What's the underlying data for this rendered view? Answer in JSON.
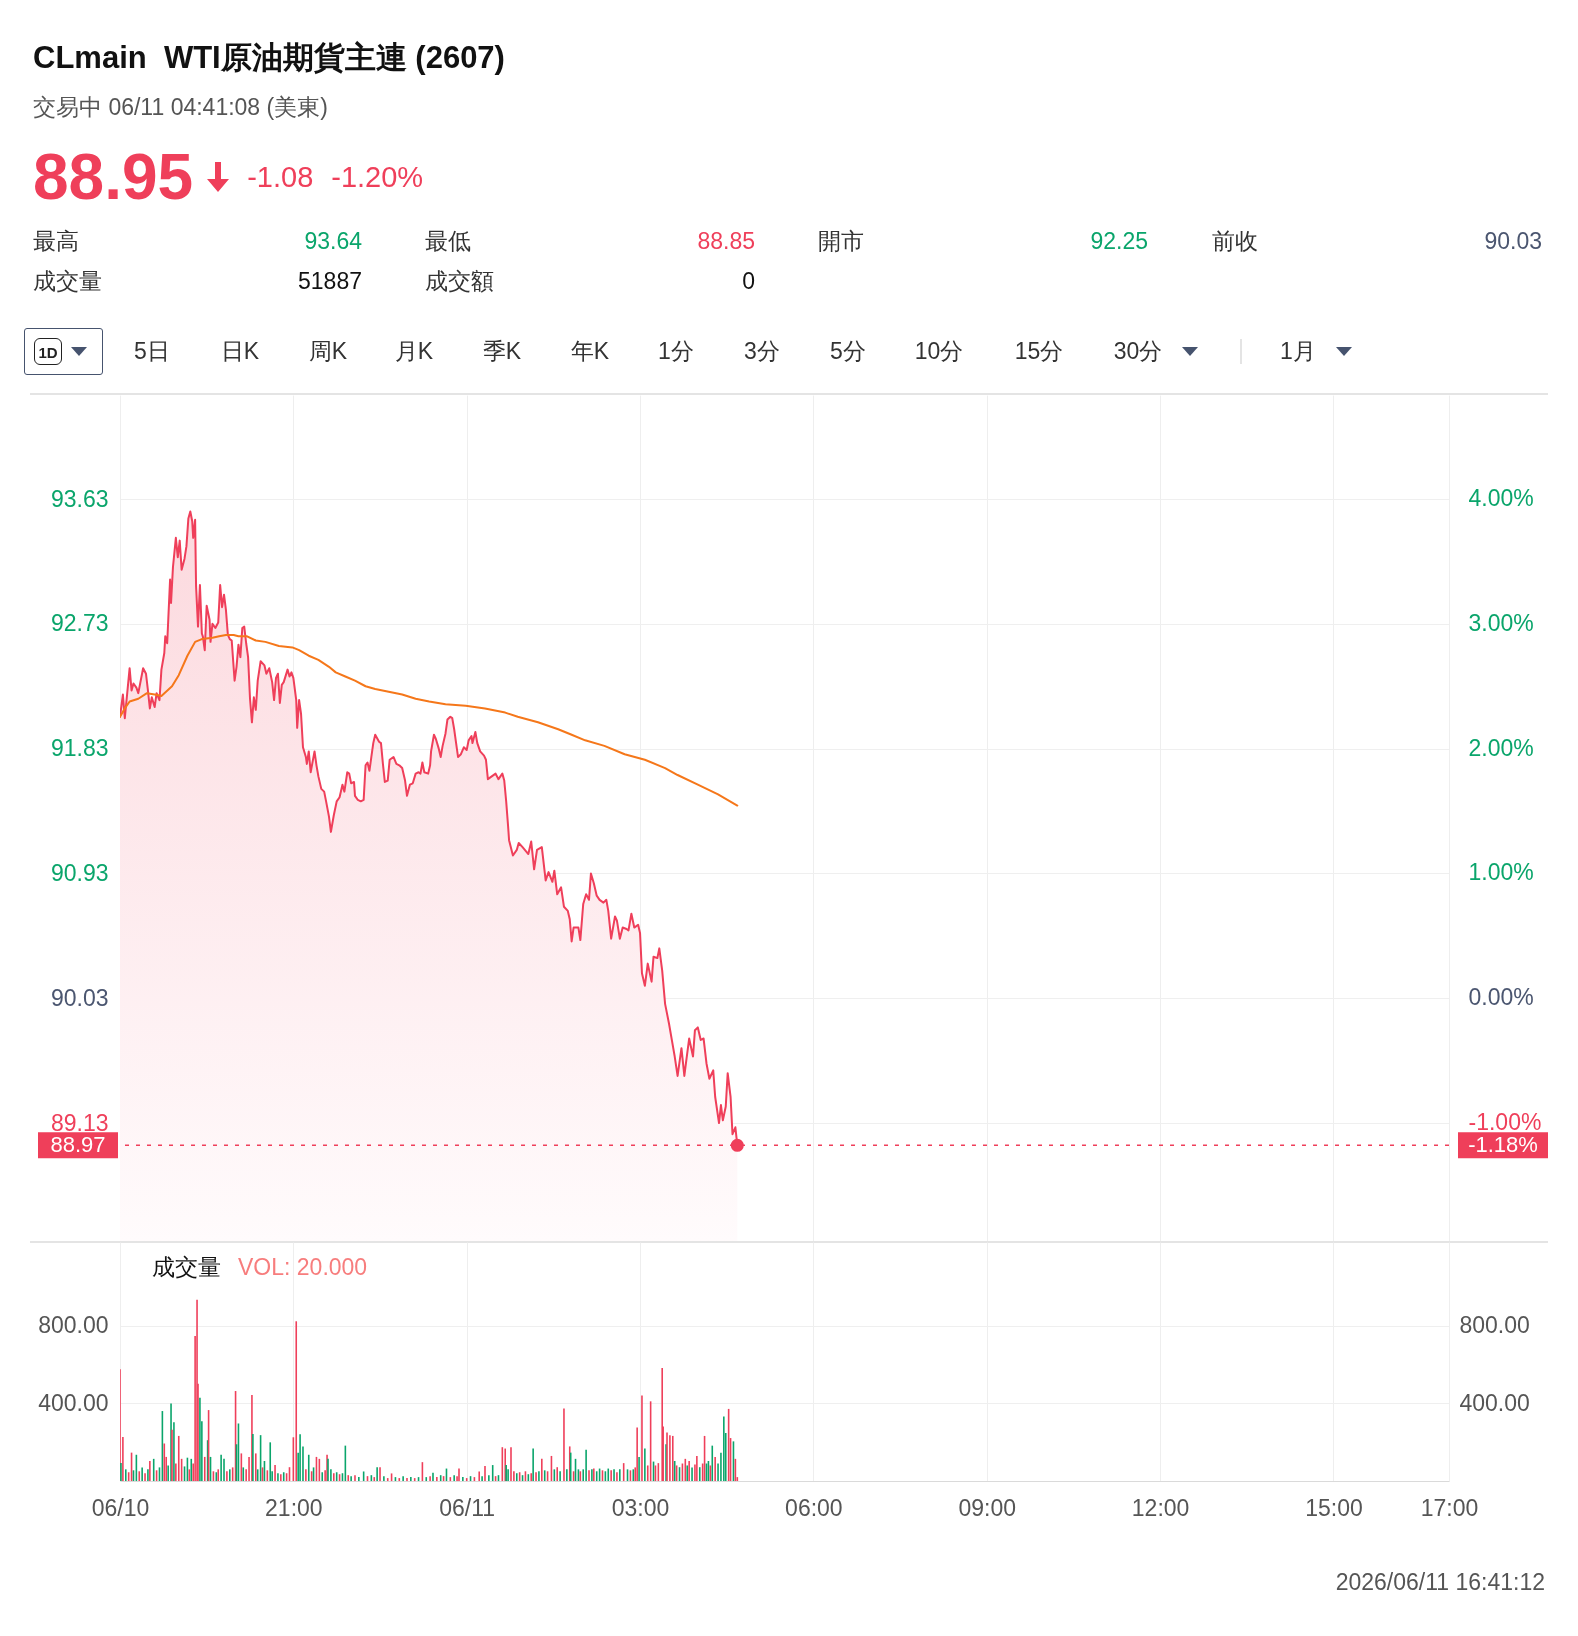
{
  "chart_data": [
    {
      "type": "other",
      "title": "CLmain  WTI原油期貨主連 (2607)",
      "subtitle": "交易中 06/11 04:41:08 (美東)",
      "annotations": [
        "88.95",
        "-1.08",
        "-1.20%",
        "最高",
        "93.64",
        "最低",
        "88.85",
        "開市",
        "92.25",
        "前收",
        "90.03",
        "成交量",
        "51887",
        "成交額",
        "0",
        "1D",
        "5日",
        "日K",
        "周K",
        "月K",
        "季K",
        "年K",
        "1分",
        "3分",
        "5分",
        "10分",
        "15分",
        "30分",
        "1月"
      ]
    },
    {
      "type": "area",
      "series": [
        {
          "type": "area",
          "color": "#ef3f5a",
          "x": [
            "2026-06-10T18:00",
            "2026-06-10T18:03",
            "2026-06-10T18:05",
            "2026-06-10T18:10",
            "2026-06-10T18:12",
            "2026-06-10T18:14",
            "2026-06-10T18:17",
            "2026-06-10T18:19",
            "2026-06-10T18:24",
            "2026-06-10T18:27",
            "2026-06-10T18:29",
            "2026-06-10T18:31",
            "2026-06-10T18:33",
            "2026-06-10T18:36",
            "2026-06-10T18:38",
            "2026-06-10T18:41",
            "2026-06-10T18:43",
            "2026-06-10T18:46",
            "2026-06-10T18:47",
            "2026-06-10T18:49",
            "2026-06-10T18:52",
            "2026-06-10T18:53",
            "2026-06-10T18:55",
            "2026-06-10T18:58",
            "2026-06-10T19:00",
            "2026-06-10T19:02",
            "2026-06-10T19:04",
            "2026-06-10T19:07",
            "2026-06-10T19:09",
            "2026-06-10T19:11",
            "2026-06-10T19:13",
            "2026-06-10T19:15",
            "2026-06-10T19:16",
            "2026-06-10T19:18",
            "2026-06-10T19:19",
            "2026-06-10T19:21",
            "2026-06-10T19:23",
            "2026-06-10T19:25",
            "2026-06-10T19:26",
            "2026-06-10T19:28",
            "2026-06-10T19:30",
            "2026-06-10T19:33",
            "2026-06-10T19:34",
            "2026-06-10T19:36",
            "2026-06-10T19:39",
            "2026-06-10T19:42",
            "2026-06-10T19:44",
            "2026-06-10T19:46",
            "2026-06-10T19:48",
            "2026-06-10T19:50",
            "2026-06-10T19:52",
            "2026-06-10T19:54",
            "2026-06-10T19:56",
            "2026-06-10T19:59",
            "2026-06-10T20:01",
            "2026-06-10T20:03",
            "2026-06-10T20:05",
            "2026-06-10T20:07",
            "2026-06-10T20:09",
            "2026-06-10T20:11",
            "2026-06-10T20:13",
            "2026-06-10T20:15",
            "2026-06-10T20:17",
            "2026-06-10T20:19",
            "2026-06-10T20:21",
            "2026-06-10T20:23",
            "2026-06-10T20:26",
            "2026-06-10T20:30",
            "2026-06-10T20:32",
            "2026-06-10T20:35",
            "2026-06-10T20:38",
            "2026-06-10T20:40",
            "2026-06-10T20:42",
            "2026-06-10T20:44",
            "2026-06-10T20:46",
            "2026-06-10T20:48",
            "2026-06-10T20:50",
            "2026-06-10T20:54",
            "2026-06-10T20:56",
            "2026-06-10T20:58",
            "2026-06-10T21:00",
            "2026-06-10T21:03",
            "2026-06-10T21:04",
            "2026-06-10T21:06",
            "2026-06-10T21:08",
            "2026-06-10T21:10",
            "2026-06-10T21:13",
            "2026-06-10T21:14",
            "2026-06-10T21:16",
            "2026-06-10T21:18",
            "2026-06-10T21:22",
            "2026-06-10T21:24",
            "2026-06-10T21:26",
            "2026-06-10T21:29",
            "2026-06-10T21:32",
            "2026-06-10T21:34",
            "2026-06-10T21:37",
            "2026-06-10T21:39",
            "2026-06-10T21:42",
            "2026-06-10T21:45",
            "2026-06-10T21:48",
            "2026-06-10T21:51",
            "2026-06-10T21:53",
            "2026-06-10T21:56",
            "2026-06-10T21:58",
            "2026-06-10T22:00",
            "2026-06-10T22:03",
            "2026-06-10T22:04",
            "2026-06-10T22:07",
            "2026-06-10T22:10",
            "2026-06-10T22:13",
            "2026-06-10T22:15",
            "2026-06-10T22:17",
            "2026-06-10T22:19",
            "2026-06-10T22:21",
            "2026-06-10T22:23",
            "2026-06-10T22:25",
            "2026-06-10T22:29",
            "2026-06-10T22:31",
            "2026-06-10T22:33",
            "2026-06-10T22:35",
            "2026-06-10T22:38",
            "2026-06-10T22:40",
            "2026-06-10T22:44",
            "2026-06-10T22:47",
            "2026-06-10T22:50",
            "2026-06-10T22:53",
            "2026-06-10T22:56",
            "2026-06-10T22:58",
            "2026-06-10T23:01",
            "2026-06-10T23:04",
            "2026-06-10T23:07",
            "2026-06-10T23:10",
            "2026-06-10T23:12",
            "2026-06-10T23:14",
            "2026-06-10T23:16",
            "2026-06-10T23:20",
            "2026-06-10T23:22",
            "2026-06-10T23:23",
            "2026-06-10T23:26",
            "2026-06-10T23:28",
            "2026-06-10T23:31",
            "2026-06-10T23:33",
            "2026-06-10T23:35",
            "2026-06-10T23:38",
            "2026-06-10T23:40",
            "2026-06-10T23:43",
            "2026-06-10T23:45",
            "2026-06-10T23:47",
            "2026-06-10T23:49",
            "2026-06-10T23:51",
            "2026-06-10T23:54",
            "2026-06-10T23:57",
            "2026-06-11T00:00",
            "2026-06-11T00:02",
            "2026-06-11T00:05",
            "2026-06-11T00:06",
            "2026-06-11T00:09",
            "2026-06-11T00:11",
            "2026-06-11T00:14",
            "2026-06-11T00:18",
            "2026-06-11T00:20",
            "2026-06-11T00:22",
            "2026-06-11T00:26",
            "2026-06-11T00:30",
            "2026-06-11T00:33",
            "2026-06-11T00:37",
            "2026-06-11T00:39",
            "2026-06-11T00:41",
            "2026-06-11T00:43",
            "2026-06-11T00:44",
            "2026-06-11T00:48",
            "2026-06-11T00:52",
            "2026-06-11T00:54",
            "2026-06-11T00:58",
            "2026-06-11T01:04",
            "2026-06-11T01:07",
            "2026-06-11T01:10",
            "2026-06-11T01:13",
            "2026-06-11T01:18",
            "2026-06-11T01:22",
            "2026-06-11T01:25",
            "2026-06-11T01:29",
            "2026-06-11T01:31",
            "2026-06-11T01:34",
            "2026-06-11T01:38",
            "2026-06-11T01:41",
            "2026-06-11T01:45",
            "2026-06-11T01:47",
            "2026-06-11T01:49",
            "2026-06-11T01:51",
            "2026-06-11T01:56",
            "2026-06-11T01:58",
            "2026-06-11T02:01",
            "2026-06-11T02:04",
            "2026-06-11T02:07",
            "2026-06-11T02:09",
            "2026-06-11T02:12",
            "2026-06-11T02:15",
            "2026-06-11T02:18",
            "2026-06-11T02:22",
            "2026-06-11T02:25",
            "2026-06-11T02:27",
            "2026-06-11T02:30",
            "2026-06-11T02:34",
            "2026-06-11T02:36",
            "2026-06-11T02:39",
            "2026-06-11T02:42",
            "2026-06-11T02:46",
            "2026-06-11T02:48",
            "2026-06-11T02:51",
            "2026-06-11T02:54",
            "2026-06-11T02:58",
            "2026-06-11T03:00",
            "2026-06-11T03:02",
            "2026-06-11T03:05",
            "2026-06-11T03:08",
            "2026-06-11T03:12",
            "2026-06-11T03:14",
            "2026-06-11T03:18",
            "2026-06-11T03:20",
            "2026-06-11T03:23",
            "2026-06-11T03:26",
            "2026-06-11T03:30",
            "2026-06-11T03:33",
            "2026-06-11T03:36",
            "2026-06-11T03:39",
            "2026-06-11T03:43",
            "2026-06-11T03:46",
            "2026-06-11T03:48",
            "2026-06-11T03:51",
            "2026-06-11T03:55",
            "2026-06-11T03:57",
            "2026-06-11T04:00",
            "2026-06-11T04:03",
            "2026-06-11T04:06",
            "2026-06-11T04:09",
            "2026-06-11T04:12",
            "2026-06-11T04:16",
            "2026-06-11T04:18",
            "2026-06-11T04:22",
            "2026-06-11T04:24",
            "2026-06-11T04:26",
            "2026-06-11T04:29",
            "2026-06-11T04:31",
            "2026-06-11T04:34",
            "2026-06-11T04:36",
            "2026-06-11T04:39",
            "2026-06-11T04:41"
          ],
          "values": [
            92.06,
            92.22,
            92.05,
            92.41,
            92.25,
            92.3,
            92.27,
            92.23,
            92.41,
            92.37,
            92.25,
            92.12,
            92.2,
            92.13,
            92.23,
            92.18,
            92.4,
            92.52,
            92.64,
            92.59,
            93.05,
            92.88,
            93.14,
            93.35,
            93.21,
            93.33,
            93.12,
            93.2,
            93.29,
            93.49,
            93.54,
            93.47,
            93.35,
            93.48,
            93.0,
            92.71,
            93.01,
            92.66,
            92.64,
            92.54,
            92.86,
            92.76,
            92.6,
            92.73,
            92.7,
            92.74,
            93.01,
            92.85,
            92.94,
            92.83,
            92.65,
            92.62,
            92.61,
            92.32,
            92.42,
            92.58,
            92.49,
            92.7,
            92.71,
            92.59,
            92.49,
            92.19,
            92.02,
            92.2,
            92.11,
            92.32,
            92.46,
            92.43,
            92.37,
            92.41,
            92.31,
            92.18,
            92.34,
            92.37,
            92.16,
            92.29,
            92.31,
            92.4,
            92.35,
            92.38,
            92.34,
            92.18,
            91.98,
            92.18,
            92.08,
            91.84,
            91.77,
            91.72,
            91.81,
            91.66,
            91.81,
            91.71,
            91.63,
            91.54,
            91.52,
            91.45,
            91.34,
            91.23,
            91.35,
            91.45,
            91.48,
            91.57,
            91.52,
            91.66,
            91.65,
            91.58,
            91.59,
            91.49,
            91.46,
            91.45,
            91.46,
            91.71,
            91.73,
            91.67,
            91.77,
            91.87,
            91.93,
            91.88,
            91.87,
            91.72,
            91.59,
            91.6,
            91.75,
            91.77,
            91.72,
            91.71,
            91.69,
            91.6,
            91.49,
            91.57,
            91.58,
            91.65,
            91.66,
            91.65,
            91.73,
            91.66,
            91.65,
            91.71,
            91.81,
            91.93,
            91.9,
            91.83,
            91.77,
            91.85,
            91.94,
            92.04,
            92.06,
            92.05,
            91.97,
            91.87,
            91.77,
            91.79,
            91.84,
            91.82,
            91.89,
            91.92,
            91.87,
            91.95,
            91.87,
            91.81,
            91.78,
            91.75,
            91.61,
            91.63,
            91.65,
            91.61,
            91.65,
            91.6,
            91.45,
            91.27,
            91.17,
            91.06,
            91.1,
            91.15,
            91.12,
            91.07,
            91.16,
            90.96,
            91.1,
            91.12,
            90.88,
            90.94,
            90.87,
            90.95,
            90.78,
            90.83,
            90.69,
            90.66,
            90.6,
            90.44,
            90.54,
            90.54,
            90.45,
            90.71,
            90.78,
            90.74,
            90.93,
            90.86,
            90.77,
            90.74,
            90.72,
            90.74,
            90.66,
            90.46,
            90.62,
            90.59,
            90.46,
            90.54,
            90.53,
            90.52,
            90.64,
            90.54,
            90.56,
            90.5,
            90.21,
            90.12,
            90.28,
            90.15,
            90.33,
            90.32,
            90.39,
            90.23,
            89.99,
            89.85,
            89.73,
            89.61,
            89.47,
            89.67,
            89.47,
            89.58,
            89.74,
            89.61,
            89.8,
            89.82,
            89.73,
            89.74,
            89.56,
            89.45,
            89.51,
            89.32,
            89.13,
            89.26,
            89.15,
            89.25,
            89.49,
            89.32,
            89.05,
            89.1,
            88.97
          ]
        },
        {
          "type": "line",
          "color": "#f5771a",
          "x": [
            "2026-06-10T18:00",
            "2026-06-10T18:05",
            "2026-06-10T18:10",
            "2026-06-10T18:19",
            "2026-06-10T18:28",
            "2026-06-10T18:36",
            "2026-06-10T18:43",
            "2026-06-10T18:54",
            "2026-06-10T19:01",
            "2026-06-10T19:10",
            "2026-06-10T19:18",
            "2026-06-10T19:25",
            "2026-06-10T19:36",
            "2026-06-10T19:43",
            "2026-06-10T19:50",
            "2026-06-10T19:58",
            "2026-06-10T20:03",
            "2026-06-10T20:12",
            "2026-06-10T20:21",
            "2026-06-10T20:31",
            "2026-06-10T20:45",
            "2026-06-10T20:59",
            "2026-06-10T21:06",
            "2026-06-10T21:16",
            "2026-06-10T21:26",
            "2026-06-10T21:37",
            "2026-06-10T21:44",
            "2026-06-10T21:54",
            "2026-06-10T22:04",
            "2026-06-10T22:15",
            "2026-06-10T22:25",
            "2026-06-10T22:39",
            "2026-06-10T22:53",
            "2026-06-10T23:07",
            "2026-06-10T23:21",
            "2026-06-10T23:38",
            "2026-06-10T23:59",
            "2026-06-11T00:19",
            "2026-06-11T00:40",
            "2026-06-11T00:53",
            "2026-06-11T01:14",
            "2026-06-11T01:35",
            "2026-06-11T01:49",
            "2026-06-11T02:03",
            "2026-06-11T02:23",
            "2026-06-11T02:44",
            "2026-06-11T03:05",
            "2026-06-11T03:26",
            "2026-06-11T03:39",
            "2026-06-11T04:00",
            "2026-06-11T04:21",
            "2026-06-11T04:41"
          ],
          "values": [
            92.06,
            92.12,
            92.17,
            92.19,
            92.23,
            92.22,
            92.21,
            92.28,
            92.36,
            92.5,
            92.6,
            92.62,
            92.63,
            92.64,
            92.65,
            92.65,
            92.64,
            92.64,
            92.61,
            92.6,
            92.57,
            92.56,
            92.54,
            92.5,
            92.47,
            92.42,
            92.38,
            92.35,
            92.32,
            92.28,
            92.26,
            92.24,
            92.22,
            92.19,
            92.17,
            92.15,
            92.14,
            92.12,
            92.09,
            92.06,
            92.02,
            91.97,
            91.93,
            91.89,
            91.85,
            91.79,
            91.75,
            91.69,
            91.64,
            91.57,
            91.5,
            91.42
          ]
        },
        {
          "type": "scatter",
          "color": "#ef3f5a",
          "x": [
            "2026-06-11T04:41"
          ],
          "values": [
            88.97
          ]
        }
      ],
      "xlim": [
        "2026-06-10T18:00",
        "2026-06-11T17:00"
      ],
      "xticks": [
        {
          "value": "2026-06-10T18:00",
          "label": null
        },
        {
          "value": "2026-06-10T21:00",
          "label": null
        },
        {
          "value": "2026-06-11T00:00",
          "label": null
        },
        {
          "value": "2026-06-11T03:00",
          "label": null
        },
        {
          "value": "2026-06-11T06:00",
          "label": null
        },
        {
          "value": "2026-06-11T09:00",
          "label": null
        },
        {
          "value": "2026-06-11T12:00",
          "label": null
        },
        {
          "value": "2026-06-11T15:00",
          "label": null
        },
        {
          "value": "2026-06-11T17:00",
          "label": null
        }
      ],
      "ylim": [
        88.28,
        94.38
      ],
      "yticks": [
        93.63,
        92.73,
        91.83,
        90.93,
        90.03,
        89.13
      ],
      "y2lim": [
        -1.95,
        4.83
      ],
      "y2ticks": [
        {
          "value": 4,
          "label": "4.00%"
        },
        {
          "value": 3,
          "label": "3.00%"
        },
        {
          "value": 2,
          "label": "2.00%"
        },
        {
          "value": 1,
          "label": "1.00%"
        },
        {
          "value": 0,
          "label": "0.00%"
        },
        {
          "value": -1,
          "label": "-1.00%"
        }
      ],
      "ref_lines": [
        {
          "axis": "y",
          "value": 88.97,
          "label": "88.97",
          "color": "#ef3f5a",
          "line_style": "dashed"
        }
      ],
      "annotations": [
        {
          "text": "-1.18%",
          "x": "2026-06-11T17:00",
          "y": 88.97
        }
      ],
      "grid": true,
      "tick_labels": "y"
    },
    {
      "type": "bar",
      "title": "成交量",
      "annotations": [
        "VOL: 20.000",
        "2026/06/11 16:41:12"
      ],
      "x": [
        "2026-06-10T18:00",
        "2026-06-10T18:01",
        "2026-06-10T18:03",
        "2026-06-10T18:06",
        "2026-06-10T18:09",
        "2026-06-10T18:12",
        "2026-06-10T18:14",
        "2026-06-10T18:17",
        "2026-06-10T18:20",
        "2026-06-10T18:23",
        "2026-06-10T18:26",
        "2026-06-10T18:29",
        "2026-06-10T18:31",
        "2026-06-10T18:35",
        "2026-06-10T18:38",
        "2026-06-10T18:41",
        "2026-06-10T18:44",
        "2026-06-10T18:46",
        "2026-06-10T18:48",
        "2026-06-10T18:50",
        "2026-06-10T18:53",
        "2026-06-10T18:54",
        "2026-06-10T18:56",
        "2026-06-10T18:58",
        "2026-06-10T19:01",
        "2026-06-10T19:04",
        "2026-06-10T19:07",
        "2026-06-10T19:10",
        "2026-06-10T19:12",
        "2026-06-10T19:14",
        "2026-06-10T19:16",
        "2026-06-10T19:18",
        "2026-06-10T19:20",
        "2026-06-10T19:21",
        "2026-06-10T19:23",
        "2026-06-10T19:25",
        "2026-06-10T19:28",
        "2026-06-10T19:31",
        "2026-06-10T19:32",
        "2026-06-10T19:34",
        "2026-06-10T19:37",
        "2026-06-10T19:40",
        "2026-06-10T19:42",
        "2026-06-10T19:45",
        "2026-06-10T19:48",
        "2026-06-10T19:51",
        "2026-06-10T19:54",
        "2026-06-10T19:57",
        "2026-06-10T20:00",
        "2026-06-10T20:01",
        "2026-06-10T20:03",
        "2026-06-10T20:06",
        "2026-06-10T20:08",
        "2026-06-10T20:11",
        "2026-06-10T20:14",
        "2026-06-10T20:17",
        "2026-06-10T20:18",
        "2026-06-10T20:21",
        "2026-06-10T20:23",
        "2026-06-10T20:26",
        "2026-06-10T20:28",
        "2026-06-10T20:30",
        "2026-06-10T20:33",
        "2026-06-10T20:36",
        "2026-06-10T20:38",
        "2026-06-10T20:41",
        "2026-06-10T20:44",
        "2026-06-10T20:47",
        "2026-06-10T20:50",
        "2026-06-10T20:53",
        "2026-06-10T20:56",
        "2026-06-10T21:00",
        "2026-06-10T21:03",
        "2026-06-10T21:05",
        "2026-06-10T21:07",
        "2026-06-10T21:10",
        "2026-06-10T21:13",
        "2026-06-10T21:16",
        "2026-06-10T21:19",
        "2026-06-10T21:21",
        "2026-06-10T21:24",
        "2026-06-10T21:27",
        "2026-06-10T21:30",
        "2026-06-10T21:33",
        "2026-06-10T21:35",
        "2026-06-10T21:36",
        "2026-06-10T21:39",
        "2026-06-10T21:42",
        "2026-06-10T21:45",
        "2026-06-10T21:48",
        "2026-06-10T21:51",
        "2026-06-10T21:54",
        "2026-06-10T21:57",
        "2026-06-10T22:00",
        "2026-06-10T22:04",
        "2026-06-10T22:08",
        "2026-06-10T22:13",
        "2026-06-10T22:17",
        "2026-06-10T22:21",
        "2026-06-10T22:24",
        "2026-06-10T22:27",
        "2026-06-10T22:30",
        "2026-06-10T22:34",
        "2026-06-10T22:38",
        "2026-06-10T22:42",
        "2026-06-10T22:46",
        "2026-06-10T22:50",
        "2026-06-10T22:54",
        "2026-06-10T22:58",
        "2026-06-10T23:02",
        "2026-06-10T23:06",
        "2026-06-10T23:10",
        "2026-06-10T23:14",
        "2026-06-10T23:18",
        "2026-06-10T23:22",
        "2026-06-10T23:25",
        "2026-06-10T23:29",
        "2026-06-10T23:33",
        "2026-06-10T23:36",
        "2026-06-10T23:39",
        "2026-06-10T23:43",
        "2026-06-10T23:47",
        "2026-06-10T23:50",
        "2026-06-10T23:52",
        "2026-06-10T23:56",
        "2026-06-11T00:00",
        "2026-06-11T00:04",
        "2026-06-11T00:08",
        "2026-06-11T00:13",
        "2026-06-11T00:16",
        "2026-06-11T00:19",
        "2026-06-11T00:23",
        "2026-06-11T00:27",
        "2026-06-11T00:30",
        "2026-06-11T00:33",
        "2026-06-11T00:37",
        "2026-06-11T00:40",
        "2026-06-11T00:41",
        "2026-06-11T00:43",
        "2026-06-11T00:46",
        "2026-06-11T00:49",
        "2026-06-11T00:52",
        "2026-06-11T00:55",
        "2026-06-11T00:58",
        "2026-06-11T01:01",
        "2026-06-11T01:04",
        "2026-06-11T01:07",
        "2026-06-11T01:09",
        "2026-06-11T01:12",
        "2026-06-11T01:15",
        "2026-06-11T01:18",
        "2026-06-11T01:21",
        "2026-06-11T01:24",
        "2026-06-11T01:28",
        "2026-06-11T01:31",
        "2026-06-11T01:34",
        "2026-06-11T01:37",
        "2026-06-11T01:41",
        "2026-06-11T01:44",
        "2026-06-11T01:47",
        "2026-06-11T01:48",
        "2026-06-11T01:51",
        "2026-06-11T01:53",
        "2026-06-11T01:56",
        "2026-06-11T01:58",
        "2026-06-11T02:01",
        "2026-06-11T02:04",
        "2026-06-11T02:07",
        "2026-06-11T02:10",
        "2026-06-11T02:12",
        "2026-06-11T02:15",
        "2026-06-11T02:18",
        "2026-06-11T02:21",
        "2026-06-11T02:24",
        "2026-06-11T02:27",
        "2026-06-11T02:30",
        "2026-06-11T02:33",
        "2026-06-11T02:36",
        "2026-06-11T02:39",
        "2026-06-11T02:43",
        "2026-06-11T02:47",
        "2026-06-11T02:50",
        "2026-06-11T02:53",
        "2026-06-11T02:55",
        "2026-06-11T02:57",
        "2026-06-11T02:59",
        "2026-06-11T03:02",
        "2026-06-11T03:05",
        "2026-06-11T03:08",
        "2026-06-11T03:11",
        "2026-06-11T03:14",
        "2026-06-11T03:16",
        "2026-06-11T03:19",
        "2026-06-11T03:23",
        "2026-06-11T03:24",
        "2026-06-11T03:27",
        "2026-06-11T03:28",
        "2026-06-11T03:31",
        "2026-06-11T03:34",
        "2026-06-11T03:36",
        "2026-06-11T03:38",
        "2026-06-11T03:41",
        "2026-06-11T03:44",
        "2026-06-11T03:47",
        "2026-06-11T03:49",
        "2026-06-11T03:51",
        "2026-06-11T03:54",
        "2026-06-11T03:57",
        "2026-06-11T03:59",
        "2026-06-11T04:02",
        "2026-06-11T04:05",
        "2026-06-11T04:07",
        "2026-06-11T04:09",
        "2026-06-11T04:11",
        "2026-06-11T04:13",
        "2026-06-11T04:15",
        "2026-06-11T04:18",
        "2026-06-11T04:21",
        "2026-06-11T04:24",
        "2026-06-11T04:27",
        "2026-06-11T04:29",
        "2026-06-11T04:32",
        "2026-06-11T04:34",
        "2026-06-11T04:37",
        "2026-06-11T04:39",
        "2026-06-11T04:41"
      ],
      "values": [
        575,
        92,
        227,
        60,
        45,
        146,
        55,
        135,
        50,
        70,
        40,
        60,
        103,
        114,
        55,
        70,
        360,
        193,
        124,
        80,
        399,
        264,
        302,
        90,
        232,
        114,
        75,
        120,
        60,
        114,
        90,
        746,
        933,
        500,
        429,
        307,
        124,
        210,
        365,
        124,
        50,
        45,
        60,
        135,
        114,
        50,
        60,
        70,
        463,
        189,
        296,
        142,
        70,
        60,
        124,
        442,
        242,
        142,
        60,
        236,
        70,
        103,
        55,
        199,
        50,
        82,
        40,
        35,
        45,
        40,
        71,
        225,
        822,
        146,
        240,
        178,
        60,
        135,
        50,
        70,
        124,
        114,
        45,
        55,
        135,
        114,
        60,
        40,
        45,
        35,
        40,
        182,
        30,
        25,
        30,
        20,
        49,
        25,
        30,
        20,
        71,
        71,
        25,
        15,
        39,
        20,
        15,
        25,
        15,
        20,
        15,
        20,
        97,
        20,
        25,
        43,
        20,
        30,
        25,
        64,
        20,
        30,
        25,
        64,
        20,
        15,
        25,
        20,
        49,
        25,
        77,
        30,
        82,
        25,
        30,
        174,
        167,
        82,
        60,
        174,
        50,
        40,
        45,
        30,
        50,
        35,
        40,
        167,
        45,
        50,
        114,
        55,
        50,
        129,
        60,
        71,
        50,
        373,
        60,
        178,
        146,
        50,
        114,
        60,
        50,
        60,
        161,
        55,
        60,
        64,
        50,
        64,
        55,
        50,
        64,
        55,
        60,
        45,
        60,
        92,
        60,
        55,
        60,
        70,
        275,
        124,
        440,
        167,
        80,
        410,
        100,
        80,
        92,
        581,
        281,
        189,
        249,
        236,
        232,
        103,
        80,
        71,
        90,
        114,
        80,
        103,
        70,
        85,
        129,
        71,
        90,
        232,
        90,
        103,
        80,
        182,
        124,
        90,
        146,
        332,
        247,
        371,
        221,
        204,
        114,
        20
      ],
      "colors": [
        "#ef3f5a",
        "#0aa56b",
        "#ef3f5a",
        "#0aa56b",
        "#ef3f5a",
        "#ef3f5a",
        "#0aa56b",
        "#0aa56b",
        "#ef3f5a",
        "#0aa56b",
        "#ef3f5a",
        "#0aa56b",
        "#ef3f5a",
        "#0aa56b",
        "#ef3f5a",
        "#0aa56b",
        "#0aa56b",
        "#ef3f5a",
        "#ef3f5a",
        "#0aa56b",
        "#0aa56b",
        "#ef3f5a",
        "#0aa56b",
        "#ef3f5a",
        "#ef3f5a",
        "#ef3f5a",
        "#0aa56b",
        "#0aa56b",
        "#ef3f5a",
        "#0aa56b",
        "#ef3f5a",
        "#ef3f5a",
        "#ef3f5a",
        "#ef3f5a",
        "#0aa56b",
        "#0aa56b",
        "#ef3f5a",
        "#0aa56b",
        "#ef3f5a",
        "#0aa56b",
        "#ef3f5a",
        "#0aa56b",
        "#ef3f5a",
        "#0aa56b",
        "#0aa56b",
        "#ef3f5a",
        "#0aa56b",
        "#ef3f5a",
        "#ef3f5a",
        "#0aa56b",
        "#0aa56b",
        "#ef3f5a",
        "#0aa56b",
        "#ef3f5a",
        "#ef3f5a",
        "#ef3f5a",
        "#0aa56b",
        "#ef3f5a",
        "#0aa56b",
        "#0aa56b",
        "#ef3f5a",
        "#0aa56b",
        "#ef3f5a",
        "#0aa56b",
        "#0aa56b",
        "#ef3f5a",
        "#0aa56b",
        "#ef3f5a",
        "#0aa56b",
        "#ef3f5a",
        "#ef3f5a",
        "#ef3f5a",
        "#ef3f5a",
        "#0aa56b",
        "#0aa56b",
        "#0aa56b",
        "#ef3f5a",
        "#0aa56b",
        "#ef3f5a",
        "#0aa56b",
        "#ef3f5a",
        "#ef3f5a",
        "#0aa56b",
        "#ef3f5a",
        "#ef3f5a",
        "#0aa56b",
        "#0aa56b",
        "#ef3f5a",
        "#0aa56b",
        "#ef3f5a",
        "#0aa56b",
        "#0aa56b",
        "#ef3f5a",
        "#0aa56b",
        "#ef3f5a",
        "#0aa56b",
        "#0aa56b",
        "#ef3f5a",
        "#0aa56b",
        "#ef3f5a",
        "#0aa56b",
        "#ef3f5a",
        "#0aa56b",
        "#ef3f5a",
        "#ef3f5a",
        "#0aa56b",
        "#ef3f5a",
        "#0aa56b",
        "#ef3f5a",
        "#0aa56b",
        "#ef3f5a",
        "#0aa56b",
        "#ef3f5a",
        "#0aa56b",
        "#ef3f5a",
        "#0aa56b",
        "#ef3f5a",
        "#0aa56b",
        "#ef3f5a",
        "#0aa56b",
        "#ef3f5a",
        "#0aa56b",
        "#ef3f5a",
        "#ef3f5a",
        "#0aa56b",
        "#ef3f5a",
        "#0aa56b",
        "#ef3f5a",
        "#ef3f5a",
        "#0aa56b",
        "#ef3f5a",
        "#0aa56b",
        "#0aa56b",
        "#ef3f5a",
        "#0aa56b",
        "#ef3f5a",
        "#ef3f5a",
        "#0aa56b",
        "#0aa56b",
        "#ef3f5a",
        "#ef3f5a",
        "#0aa56b",
        "#ef3f5a",
        "#0aa56b",
        "#ef3f5a",
        "#0aa56b",
        "#ef3f5a",
        "#0aa56b",
        "#ef3f5a",
        "#0aa56b",
        "#ef3f5a",
        "#0aa56b",
        "#ef3f5a",
        "#ef3f5a",
        "#0aa56b",
        "#ef3f5a",
        "#0aa56b",
        "#ef3f5a",
        "#0aa56b",
        "#ef3f5a",
        "#0aa56b",
        "#ef3f5a",
        "#0aa56b",
        "#0aa56b",
        "#ef3f5a",
        "#0aa56b",
        "#0aa56b",
        "#ef3f5a",
        "#0aa56b",
        "#ef3f5a",
        "#0aa56b",
        "#0aa56b",
        "#ef3f5a",
        "#0aa56b",
        "#0aa56b",
        "#ef3f5a",
        "#0aa56b",
        "#ef3f5a",
        "#0aa56b",
        "#ef3f5a",
        "#0aa56b",
        "#ef3f5a",
        "#0aa56b",
        "#ef3f5a",
        "#ef3f5a",
        "#0aa56b",
        "#ef3f5a",
        "#0aa56b",
        "#ef3f5a",
        "#ef3f5a",
        "#0aa56b",
        "#ef3f5a",
        "#ef3f5a",
        "#ef3f5a",
        "#ef3f5a",
        "#0aa56b",
        "#ef3f5a",
        "#ef3f5a",
        "#ef3f5a",
        "#0aa56b",
        "#ef3f5a",
        "#0aa56b",
        "#ef3f5a",
        "#ef3f5a",
        "#0aa56b",
        "#ef3f5a",
        "#0aa56b",
        "#ef3f5a",
        "#ef3f5a",
        "#0aa56b",
        "#ef3f5a",
        "#ef3f5a",
        "#0aa56b",
        "#0aa56b",
        "#ef3f5a",
        "#0aa56b",
        "#ef3f5a",
        "#0aa56b",
        "#0aa56b",
        "#0aa56b",
        "#0aa56b",
        "#ef3f5a",
        "#ef3f5a",
        "#0aa56b",
        "#ef3f5a",
        "#ef3f5a"
      ],
      "xlim": [
        "2026-06-10T18:00",
        "2026-06-11T17:00"
      ],
      "xticks": [
        {
          "value": "2026-06-10T18:00",
          "label": "06/10"
        },
        {
          "value": "2026-06-10T21:00",
          "label": "21:00"
        },
        {
          "value": "2026-06-11T00:00",
          "label": "06/11"
        },
        {
          "value": "2026-06-11T03:00",
          "label": "03:00"
        },
        {
          "value": "2026-06-11T06:00",
          "label": "06:00"
        },
        {
          "value": "2026-06-11T09:00",
          "label": "09:00"
        },
        {
          "value": "2026-06-11T12:00",
          "label": "12:00"
        },
        {
          "value": "2026-06-11T15:00",
          "label": "15:00"
        },
        {
          "value": "2026-06-11T17:00",
          "label": "17:00"
        }
      ],
      "ylim": [
        0,
        1230
      ],
      "yticks": [
        {
          "value": 400,
          "label": "400.00"
        },
        {
          "value": 800,
          "label": "800.00"
        }
      ],
      "y2lim": [
        0,
        1230
      ],
      "y2ticks": [
        {
          "value": 400,
          "label": "400.00"
        },
        {
          "value": 800,
          "label": "800.00"
        }
      ],
      "grid": true
    }
  ]
}
